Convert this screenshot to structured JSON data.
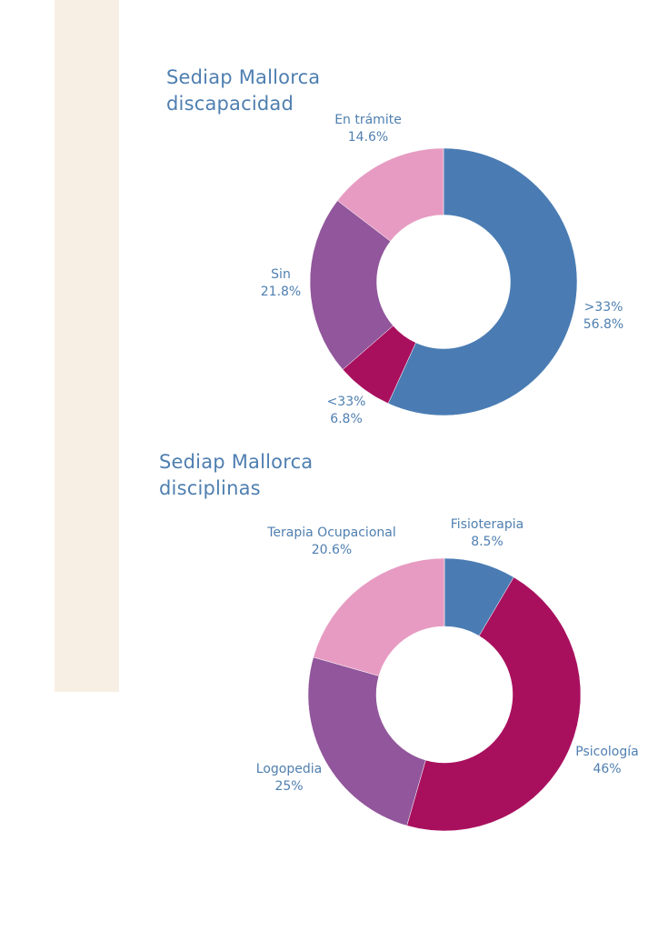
{
  "chart_data": [
    {
      "type": "pie",
      "title": "Sediap Mallorca discapacidad",
      "title_lines": [
        "Sediap Mallorca",
        "discapacidad"
      ],
      "hole": 0.5,
      "categories": [
        ">33%",
        "<33%",
        "Sin",
        "En trámite"
      ],
      "values": [
        56.8,
        6.8,
        21.8,
        14.6
      ],
      "labels": [
        "56.8%",
        "6.8%",
        "21.8%",
        "14.6%"
      ],
      "colors": [
        "#4a7cb3",
        "#a8105e",
        "#91569b",
        "#e79bc2"
      ]
    },
    {
      "type": "pie",
      "title": "Sediap Mallorca disciplinas",
      "title_lines": [
        "Sediap Mallorca",
        "disciplinas"
      ],
      "hole": 0.5,
      "categories": [
        "Fisioterapia",
        "Psicología",
        "Logopedia",
        "Terapia Ocupacional"
      ],
      "values": [
        8.5,
        46,
        25,
        20.6
      ],
      "labels": [
        "8.5%",
        "46%",
        "25%",
        "20.6%"
      ],
      "colors": [
        "#4a7cb3",
        "#a8105e",
        "#91569b",
        "#e79bc2"
      ]
    }
  ]
}
